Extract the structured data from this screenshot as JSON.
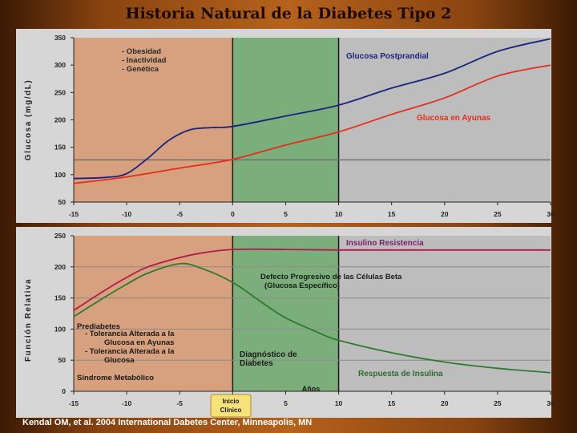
{
  "slide": {
    "title": "Historia Natural de la Diabetes Tipo 2",
    "citation": "Kendal OM, et al. 2004 International Dabetes Center, Minneapolis, MN"
  },
  "colors": {
    "pre_region": "#d7a07e",
    "diag_region": "#7cae7c",
    "plot_bg": "#bdbdbd",
    "postprandial": "#1a237e",
    "ayunas": "#e52d1c",
    "resistencia": "#7a1f6a",
    "defecto": "#1e5a1e",
    "respuesta": "#2f6b2f"
  },
  "chart_data": [
    {
      "type": "line",
      "ylabel": "Glucosa (mg/dL)",
      "xlim": [
        -15,
        30
      ],
      "ylim": [
        50,
        350
      ],
      "xticks": [
        -15,
        -10,
        -5,
        0,
        5,
        10,
        15,
        20,
        25,
        30
      ],
      "yticks": [
        50,
        100,
        150,
        200,
        250,
        300,
        350
      ],
      "grid": "none",
      "reference_line_y": 127,
      "regions": [
        {
          "label": "prediabetes",
          "x": [
            -15,
            0
          ]
        },
        {
          "label": "diabetes",
          "x": [
            0,
            10
          ]
        }
      ],
      "annotations": [
        "- Obesidad",
        "- Inactividad",
        "- Genética"
      ],
      "series": [
        {
          "name": "Glucosa Postprandial",
          "x": [
            -15,
            -12,
            -10,
            -8,
            -6,
            -4,
            -2,
            0,
            5,
            10,
            15,
            20,
            25,
            30
          ],
          "y": [
            93,
            95,
            102,
            130,
            163,
            182,
            186,
            188,
            207,
            227,
            258,
            285,
            325,
            348
          ]
        },
        {
          "name": "Glucosa en Ayunas",
          "x": [
            -15,
            -10,
            -5,
            0,
            5,
            10,
            15,
            20,
            25,
            30
          ],
          "y": [
            84,
            96,
            112,
            128,
            154,
            178,
            210,
            240,
            280,
            300
          ]
        }
      ]
    },
    {
      "type": "line",
      "xlabel": "Años",
      "ylabel": "Función Relativa",
      "xlim": [
        -15,
        30
      ],
      "ylim": [
        0,
        250
      ],
      "xticks": [
        -15,
        -10,
        -5,
        0,
        5,
        10,
        15,
        20,
        25,
        30
      ],
      "yticks": [
        0,
        50,
        100,
        150,
        200,
        250
      ],
      "grid": "horizontal",
      "regions": [
        {
          "label": "prediabetes",
          "x": [
            -15,
            0
          ]
        },
        {
          "label": "diabetes",
          "x": [
            0,
            10
          ]
        }
      ],
      "annotations": {
        "prediabetes_title": "Prediabetes",
        "prediabetes_items": [
          "- Tolerancia Alterada a la",
          "Glucosa en Ayunas",
          "- Tolerancia Alterada a la",
          "Glucosa"
        ],
        "sindrome": "Síndrome Metabólico",
        "diagnostico": [
          "Diagnóstico de",
          "Diabetes"
        ],
        "defecto": [
          "Defecto Progresivo de las Células Beta",
          "(Glucosa Específico)"
        ],
        "inicio": [
          "Inicio",
          "Clínico"
        ]
      },
      "series": [
        {
          "name": "Insulino Resistencia",
          "x": [
            -15,
            -12,
            -10,
            -8,
            -5,
            -3,
            0,
            5,
            10,
            15,
            20,
            25,
            30
          ],
          "y": [
            130,
            163,
            183,
            200,
            215,
            222,
            228,
            228,
            227,
            227,
            227,
            227,
            227
          ]
        },
        {
          "name": "Respuesta de Insulina",
          "x": [
            -15,
            -12,
            -10,
            -8,
            -5,
            -3,
            0,
            3,
            5,
            8,
            10,
            15,
            20,
            25,
            30
          ],
          "y": [
            120,
            152,
            172,
            190,
            205,
            198,
            175,
            140,
            118,
            95,
            82,
            62,
            47,
            37,
            30
          ]
        }
      ]
    }
  ]
}
